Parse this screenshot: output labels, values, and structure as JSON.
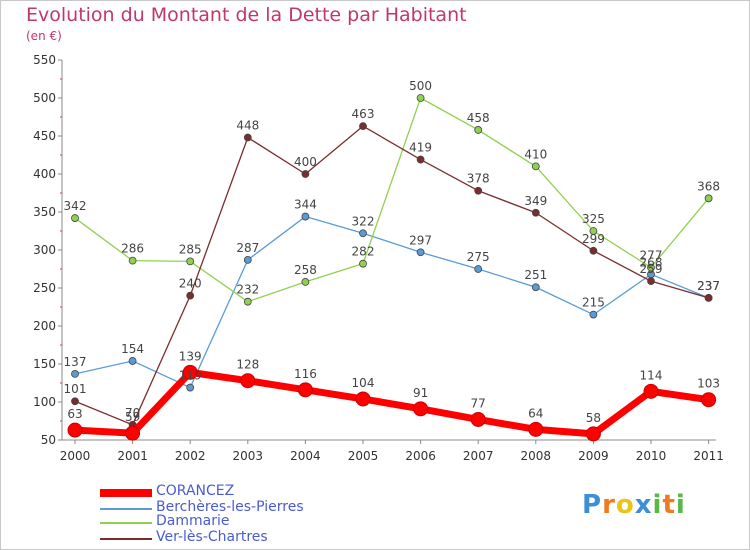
{
  "header": {
    "title": "Evolution du Montant de la Dette par Habitant",
    "subtitle": "(en €)"
  },
  "logo": {
    "text": "Proxiti",
    "letters": [
      {
        "ch": "P",
        "color": "#3a8fd6"
      },
      {
        "ch": "r",
        "color": "#f07b1e"
      },
      {
        "ch": "o",
        "color": "#e9c519"
      },
      {
        "ch": "x",
        "color": "#3a8fd6"
      },
      {
        "ch": "i",
        "color": "#58b947"
      },
      {
        "ch": "t",
        "color": "#f07b1e"
      },
      {
        "ch": "i",
        "color": "#58b947"
      }
    ]
  },
  "chart_data": {
    "type": "line",
    "x": [
      "2000",
      "2001",
      "2002",
      "2003",
      "2004",
      "2005",
      "2006",
      "2007",
      "2008",
      "2009",
      "2010",
      "2011"
    ],
    "ylim": [
      50,
      550
    ],
    "yticks": [
      50,
      100,
      150,
      200,
      250,
      300,
      350,
      400,
      450,
      500,
      550
    ],
    "grid": false,
    "legend_position": "bottom-left",
    "series": [
      {
        "name": "CORANCEZ",
        "color": "#ff0000",
        "values": [
          63,
          59,
          139,
          128,
          116,
          104,
          91,
          77,
          64,
          58,
          114,
          103
        ],
        "labels": [
          "63",
          "59",
          "139",
          "128",
          "116",
          "104",
          "91",
          "77",
          "64",
          "58",
          "114",
          "103"
        ]
      },
      {
        "name": "Berchères-les-Pierres",
        "color": "#5b9bd5",
        "values": [
          137,
          154,
          119,
          287,
          344,
          322,
          297,
          275,
          251,
          215,
          268,
          237
        ],
        "labels": [
          "137",
          "154",
          "119",
          "287",
          "344",
          "322",
          "297",
          "275",
          "251",
          "215",
          "268",
          "237"
        ]
      },
      {
        "name": "Dammarie",
        "color": "#8fd14f",
        "values": [
          342,
          286,
          285,
          232,
          258,
          282,
          500,
          458,
          410,
          325,
          277,
          368
        ],
        "labels": [
          "342",
          "286",
          "285",
          "232",
          "258",
          "282",
          "500",
          "458",
          "410",
          "325",
          "277",
          "368"
        ]
      },
      {
        "name": "Ver-lès-Chartres",
        "color": "#7b2d2d",
        "values": [
          101,
          70,
          240,
          448,
          400,
          463,
          419,
          378,
          349,
          299,
          259,
          237
        ],
        "labels": [
          "101",
          "70",
          "240",
          "448",
          "400",
          "463",
          "419",
          "378",
          "349",
          "299",
          "259",
          "237"
        ]
      }
    ]
  }
}
